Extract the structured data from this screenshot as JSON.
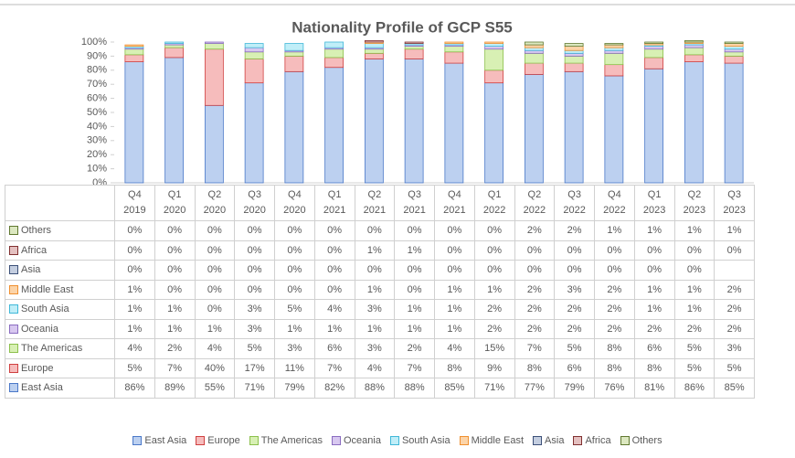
{
  "chart_data": {
    "type": "bar",
    "stacked": true,
    "title": "Nationality Profile of GCP S55",
    "categories": [
      "Q4 2019",
      "Q1 2020",
      "Q2 2020",
      "Q3 2020",
      "Q4 2020",
      "Q1 2021",
      "Q2 2021",
      "Q3 2021",
      "Q4 2021",
      "Q1 2022",
      "Q2 2022",
      "Q3 2022",
      "Q4 2022",
      "Q1 2023",
      "Q2 2023",
      "Q3 2023"
    ],
    "ylim": [
      0,
      100
    ],
    "yticks": [
      {
        "value": 0,
        "label": "0%"
      },
      {
        "value": 10,
        "label": "10%"
      },
      {
        "value": 20,
        "label": "20%"
      },
      {
        "value": 30,
        "label": "30%"
      },
      {
        "value": 40,
        "label": "40%"
      },
      {
        "value": 50,
        "label": "50%"
      },
      {
        "value": 60,
        "label": "60%"
      },
      {
        "value": 70,
        "label": "70%"
      },
      {
        "value": 80,
        "label": "80%"
      },
      {
        "value": 90,
        "label": "90%"
      },
      {
        "value": 100,
        "label": "100%"
      }
    ],
    "grid": false,
    "legend": "bottom",
    "series": [
      {
        "name": "East Asia",
        "color": "#bcd0f0",
        "stroke": "#4a78c8",
        "values": [
          86,
          89,
          55,
          71,
          79,
          82,
          88,
          88,
          85,
          71,
          77,
          79,
          76,
          81,
          86,
          85
        ],
        "value_labels": [
          "86%",
          "89%",
          "55%",
          "71%",
          "79%",
          "82%",
          "88%",
          "88%",
          "85%",
          "71%",
          "77%",
          "79%",
          "76%",
          "81%",
          "86%",
          "85%"
        ]
      },
      {
        "name": "Europe",
        "color": "#f6bcbc",
        "stroke": "#d04040",
        "values": [
          5,
          7,
          40,
          17,
          11,
          7,
          4,
          7,
          8,
          9,
          8,
          6,
          8,
          8,
          5,
          5
        ],
        "value_labels": [
          "5%",
          "7%",
          "40%",
          "17%",
          "11%",
          "7%",
          "4%",
          "7%",
          "8%",
          "9%",
          "8%",
          "6%",
          "8%",
          "8%",
          "5%",
          "5%"
        ]
      },
      {
        "name": "The Americas",
        "color": "#d8f0b4",
        "stroke": "#8cc04c",
        "values": [
          4,
          2,
          4,
          5,
          3,
          6,
          3,
          2,
          4,
          15,
          7,
          5,
          8,
          6,
          5,
          3
        ],
        "value_labels": [
          "4%",
          "2%",
          "4%",
          "5%",
          "3%",
          "6%",
          "3%",
          "2%",
          "4%",
          "15%",
          "7%",
          "5%",
          "8%",
          "6%",
          "5%",
          "3%"
        ]
      },
      {
        "name": "Oceania",
        "color": "#d8c8f0",
        "stroke": "#8a6cc0",
        "values": [
          1,
          1,
          1,
          3,
          1,
          1,
          1,
          1,
          1,
          2,
          2,
          2,
          2,
          2,
          2,
          2
        ],
        "value_labels": [
          "1%",
          "1%",
          "1%",
          "3%",
          "1%",
          "1%",
          "1%",
          "1%",
          "1%",
          "2%",
          "2%",
          "2%",
          "2%",
          "2%",
          "2%",
          "2%"
        ]
      },
      {
        "name": "South Asia",
        "color": "#c0eef8",
        "stroke": "#40b8d8",
        "values": [
          1,
          1,
          0,
          3,
          5,
          4,
          3,
          1,
          1,
          2,
          2,
          2,
          2,
          1,
          1,
          2
        ],
        "value_labels": [
          "1%",
          "1%",
          "0%",
          "3%",
          "5%",
          "4%",
          "3%",
          "1%",
          "1%",
          "2%",
          "2%",
          "2%",
          "2%",
          "1%",
          "1%",
          "2%"
        ]
      },
      {
        "name": "Middle East",
        "color": "#fcd4a8",
        "stroke": "#f09030",
        "values": [
          1,
          0,
          0,
          0,
          0,
          0,
          1,
          0,
          1,
          1,
          2,
          3,
          2,
          1,
          1,
          2
        ],
        "value_labels": [
          "1%",
          "0%",
          "0%",
          "0%",
          "0%",
          "0%",
          "1%",
          "0%",
          "1%",
          "1%",
          "2%",
          "3%",
          "2%",
          "1%",
          "1%",
          "2%"
        ]
      },
      {
        "name": "Asia",
        "color": "#c4cee0",
        "stroke": "#3c5078",
        "values": [
          0,
          0,
          0,
          0,
          0,
          0,
          0,
          0,
          0,
          0,
          0,
          0,
          0,
          0,
          0,
          null
        ],
        "value_labels": [
          "0%",
          "0%",
          "0%",
          "0%",
          "0%",
          "0%",
          "0%",
          "0%",
          "0%",
          "0%",
          "0%",
          "0%",
          "0%",
          "0%",
          "0%",
          null
        ]
      },
      {
        "name": "Africa",
        "color": "#e4c0c0",
        "stroke": "#803030",
        "values": [
          0,
          0,
          0,
          0,
          0,
          0,
          1,
          1,
          0,
          0,
          0,
          0,
          0,
          0,
          0,
          0
        ],
        "value_labels": [
          "0%",
          "0%",
          "0%",
          "0%",
          "0%",
          "0%",
          "1%",
          "1%",
          "0%",
          "0%",
          "0%",
          "0%",
          "0%",
          "0%",
          "0%",
          "0%"
        ]
      },
      {
        "name": "Others",
        "color": "#dce8c0",
        "stroke": "#607830",
        "values": [
          0,
          0,
          0,
          0,
          0,
          0,
          0,
          0,
          0,
          0,
          2,
          2,
          1,
          1,
          1,
          1
        ],
        "value_labels": [
          "0%",
          "0%",
          "0%",
          "0%",
          "0%",
          "0%",
          "0%",
          "0%",
          "0%",
          "0%",
          "2%",
          "2%",
          "1%",
          "1%",
          "1%",
          "1%"
        ]
      }
    ]
  }
}
